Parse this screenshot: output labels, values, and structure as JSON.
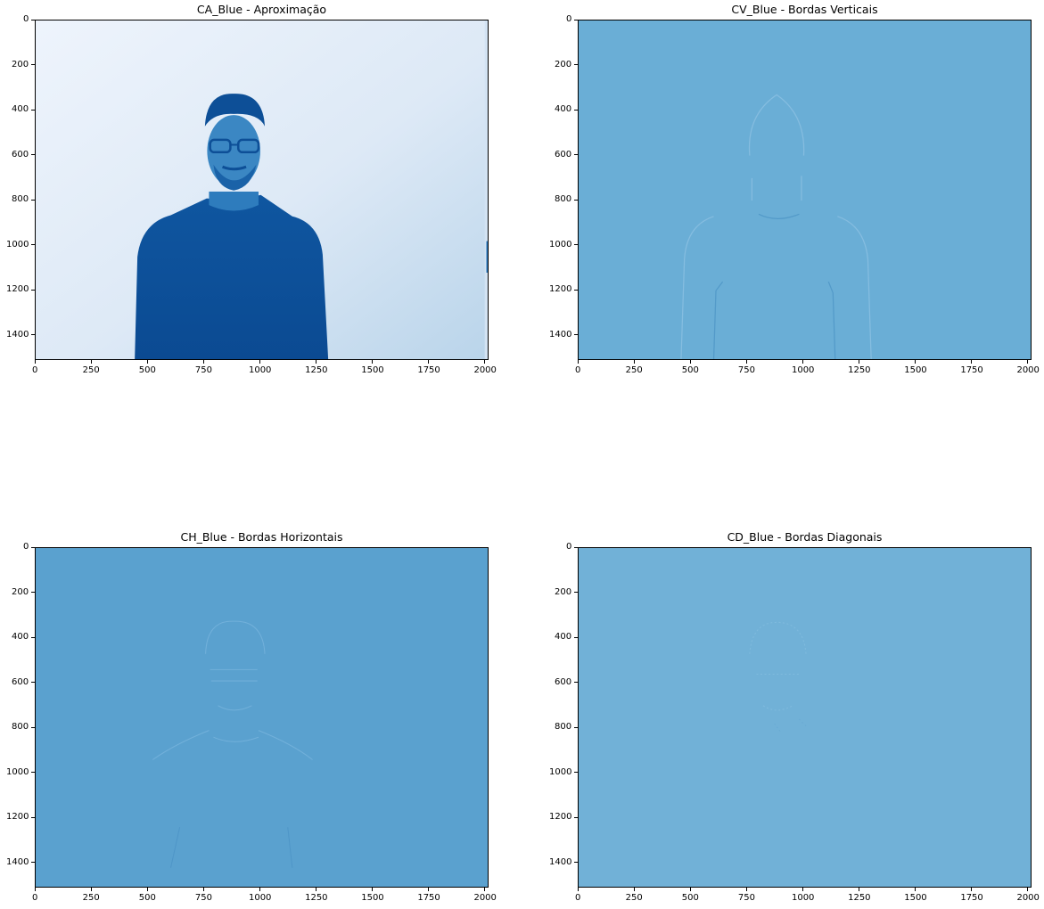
{
  "colors": {
    "cmap": "Blues",
    "ca_background_light": "#e9f1fb",
    "ca_background_mid": "#c9dcef",
    "ca_dark": "#0c4e98",
    "ca_skin": "#3a86c2",
    "cv_flat": "#6aaed6",
    "ch_flat": "#5aa1cf",
    "cd_flat": "#71b1d7"
  },
  "image_extent": {
    "x": [
      0,
      2016
    ],
    "y": [
      1512,
      0
    ]
  },
  "panels": [
    {
      "id": "ca",
      "title": "CA_Blue - Aproximação",
      "xticks": [
        "0",
        "250",
        "500",
        "750",
        "1000",
        "1250",
        "1500",
        "1750",
        "2000"
      ],
      "yticks": [
        "0",
        "200",
        "400",
        "600",
        "800",
        "1000",
        "1200",
        "1400"
      ]
    },
    {
      "id": "cv",
      "title": "CV_Blue - Bordas Verticais",
      "xticks": [
        "0",
        "250",
        "500",
        "750",
        "1000",
        "1250",
        "1500",
        "1750",
        "2000"
      ],
      "yticks": [
        "0",
        "200",
        "400",
        "600",
        "800",
        "1000",
        "1200",
        "1400"
      ]
    },
    {
      "id": "ch",
      "title": "CH_Blue - Bordas Horizontais",
      "xticks": [
        "0",
        "250",
        "500",
        "750",
        "1000",
        "1250",
        "1500",
        "1750",
        "2000"
      ],
      "yticks": [
        "0",
        "200",
        "400",
        "600",
        "800",
        "1000",
        "1200",
        "1400"
      ]
    },
    {
      "id": "cd",
      "title": "CD_Blue - Bordas Diagonais",
      "xticks": [
        "0",
        "250",
        "500",
        "750",
        "1000",
        "1250",
        "1500",
        "1750",
        "2000"
      ],
      "yticks": [
        "0",
        "200",
        "400",
        "600",
        "800",
        "1000",
        "1200",
        "1400"
      ]
    }
  ]
}
